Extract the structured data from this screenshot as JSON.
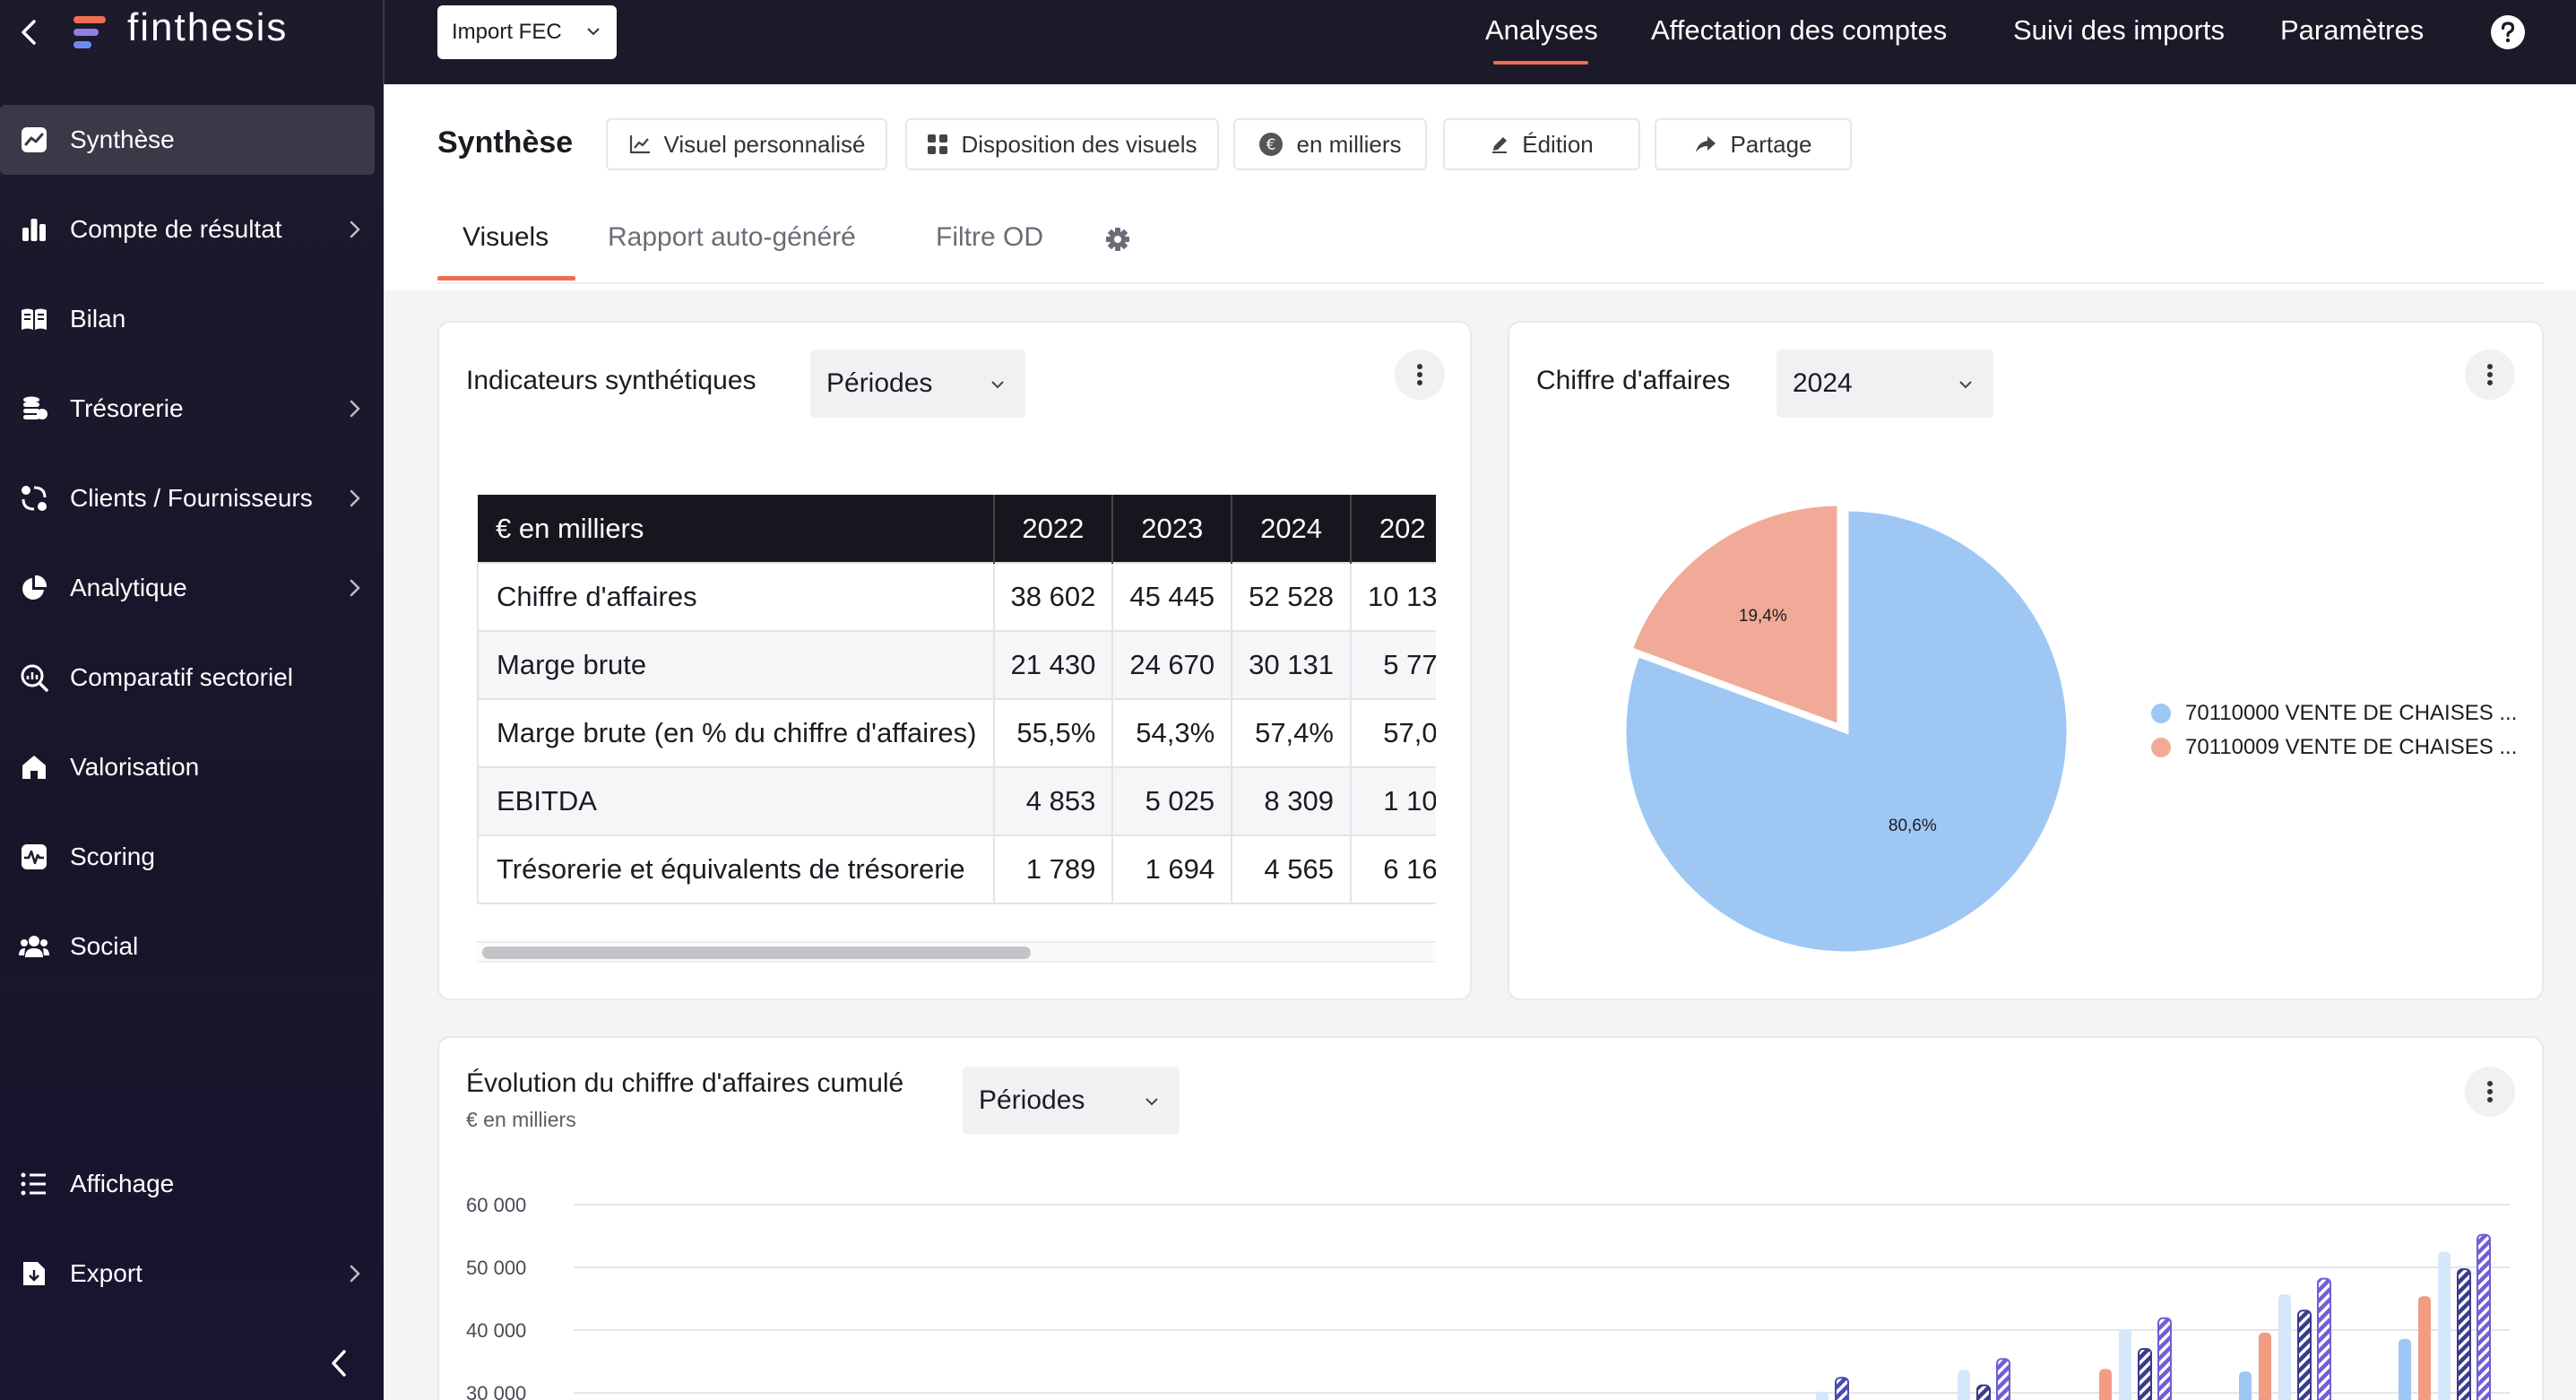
{
  "app": {
    "name": "finthesis"
  },
  "topbar": {
    "import_label": "Import FEC",
    "nav": [
      "Analyses",
      "Affectation des comptes",
      "Suivi des imports",
      "Paramètres"
    ],
    "active_nav": "Analyses"
  },
  "sidebar": {
    "items": [
      {
        "label": "Synthèse",
        "icon": "trend-icon",
        "active": true,
        "chevron": false
      },
      {
        "label": "Compte de résultat",
        "icon": "bar-chart-icon",
        "chevron": true
      },
      {
        "label": "Bilan",
        "icon": "book-icon",
        "chevron": false
      },
      {
        "label": "Trésorerie",
        "icon": "coins-icon",
        "chevron": true
      },
      {
        "label": "Clients / Fournisseurs",
        "icon": "people-cycle-icon",
        "chevron": true
      },
      {
        "label": "Analytique",
        "icon": "pie-icon",
        "chevron": true
      },
      {
        "label": "Comparatif sectoriel",
        "icon": "magnifier-chart-icon",
        "chevron": false
      },
      {
        "label": "Valorisation",
        "icon": "home-icon",
        "chevron": false
      },
      {
        "label": "Scoring",
        "icon": "pulse-icon",
        "chevron": false
      },
      {
        "label": "Social",
        "icon": "group-icon",
        "chevron": false
      }
    ],
    "bottom_items": [
      {
        "label": "Affichage",
        "icon": "list-icon",
        "chevron": false
      },
      {
        "label": "Export",
        "icon": "export-icon",
        "chevron": true
      }
    ]
  },
  "page": {
    "title": "Synthèse",
    "toolbar": {
      "custom_visual": "Visuel personnalisé",
      "layout": "Disposition des visuels",
      "units": "en milliers",
      "edit": "Édition",
      "share": "Partage"
    },
    "tabs": [
      "Visuels",
      "Rapport auto-généré",
      "Filtre OD"
    ],
    "active_tab": "Visuels"
  },
  "kpi_card": {
    "title": "Indicateurs synthétiques",
    "select_value": "Périodes",
    "table": {
      "header_label": "€ en milliers",
      "columns": [
        "2022",
        "2023",
        "2024",
        "202"
      ],
      "rows": [
        {
          "label": "Chiffre d'affaires",
          "values": [
            "38 602",
            "45 445",
            "52 528",
            "10 13"
          ]
        },
        {
          "label": "Marge brute",
          "values": [
            "21 430",
            "24 670",
            "30 131",
            "5 77"
          ]
        },
        {
          "label": "Marge brute (en % du chiffre d'affaires)",
          "values": [
            "55,5%",
            "54,3%",
            "57,4%",
            "57,0"
          ]
        },
        {
          "label": "EBITDA",
          "values": [
            "4 853",
            "5 025",
            "8 309",
            "1 10"
          ]
        },
        {
          "label": "Trésorerie et équivalents de trésorerie",
          "values": [
            "1 789",
            "1 694",
            "4 565",
            "6 16"
          ]
        }
      ]
    }
  },
  "revenue_card": {
    "title": "Chiffre d'affaires",
    "select_value": "2024",
    "chart_data": {
      "type": "pie",
      "slices": [
        {
          "name": "70110000 VENTE DE CHAISES ...",
          "value": 80.6,
          "label": "80,6%",
          "color": "#9ec7f4"
        },
        {
          "name": "70110009 VENTE DE CHAISES ...",
          "value": 19.4,
          "label": "19,4%",
          "color": "#f1aa97"
        }
      ],
      "legend": "right"
    }
  },
  "evolution_card": {
    "title": "Évolution du chiffre d'affaires cumulé",
    "subtitle": "€ en milliers",
    "select_value": "Périodes",
    "chart_data": {
      "type": "bar",
      "ylim": [
        30000,
        60000
      ],
      "yticks": [
        "60 000",
        "50 000",
        "40 000",
        "30 000"
      ],
      "ytick_values": [
        60000,
        50000,
        40000,
        30000
      ],
      "grid": true,
      "groups": [
        {
          "bars": [
            {
              "value": 30200,
              "color": "#d6e6fb",
              "hatch": false
            },
            {
              "value": 32400,
              "color": "#4a4ab0",
              "hatch": true
            }
          ]
        },
        {
          "bars": [
            {
              "value": 33600,
              "color": "#d6e6fb",
              "hatch": false
            },
            {
              "value": 31200,
              "color": "#3b3b8c",
              "hatch": true
            },
            {
              "value": 35400,
              "color": "#6f5fd6",
              "hatch": true
            }
          ]
        },
        {
          "bars": [
            {
              "value": 33800,
              "color": "#f29c84",
              "hatch": false
            },
            {
              "value": 40100,
              "color": "#d6e6fb",
              "hatch": false
            },
            {
              "value": 37000,
              "color": "#3b3b8c",
              "hatch": true
            },
            {
              "value": 41900,
              "color": "#6f5fd6",
              "hatch": true
            }
          ]
        },
        {
          "bars": [
            {
              "value": 33400,
              "color": "#9ec7f4",
              "hatch": false
            },
            {
              "value": 39600,
              "color": "#f29c84",
              "hatch": false
            },
            {
              "value": 45700,
              "color": "#d6e6fb",
              "hatch": false
            },
            {
              "value": 43100,
              "color": "#3b3b8c",
              "hatch": true
            },
            {
              "value": 48200,
              "color": "#6f5fd6",
              "hatch": true
            }
          ]
        },
        {
          "bars": [
            {
              "value": 38600,
              "color": "#9ec7f4",
              "hatch": false
            },
            {
              "value": 45400,
              "color": "#f29c84",
              "hatch": false
            },
            {
              "value": 52500,
              "color": "#d6e6fb",
              "hatch": false
            },
            {
              "value": 49700,
              "color": "#3b3b8c",
              "hatch": true
            },
            {
              "value": 55200,
              "color": "#6f5fd6",
              "hatch": true
            }
          ]
        }
      ]
    }
  },
  "colors": {
    "accent": "#ef6e52",
    "sidebar_bg": "#1c1a2b",
    "topbar_bg": "#1c1a29"
  }
}
